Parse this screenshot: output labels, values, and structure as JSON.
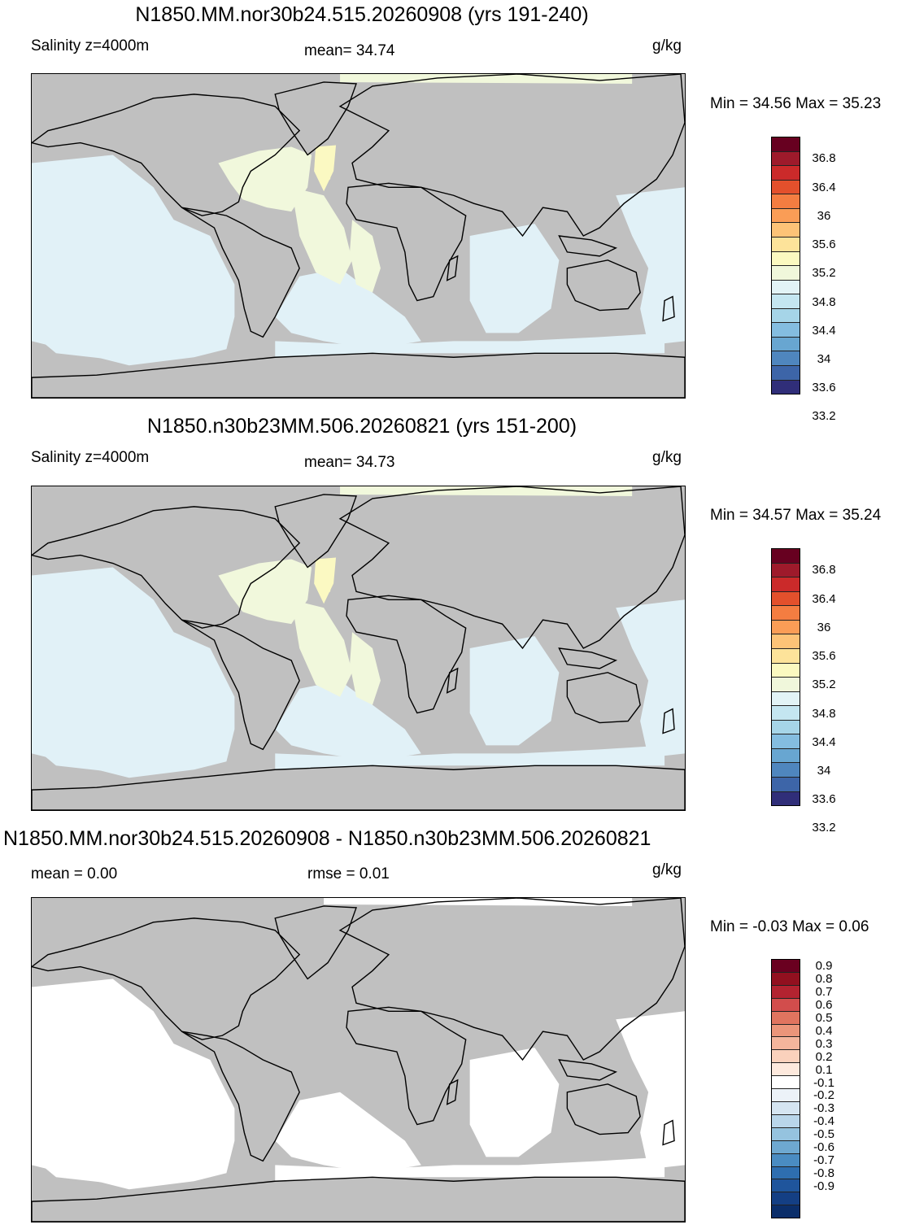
{
  "panels": [
    {
      "title": "N1850.MM.nor30b24.515.20260908 (yrs 191-240)",
      "left_label": "Salinity z=4000m",
      "center_label": "mean=  34.74",
      "units": "g/kg",
      "minmax": "Min =  34.56 Max =  35.23"
    },
    {
      "title": "N1850.n30b23MM.506.20260821 (yrs 151-200)",
      "left_label": "Salinity z=4000m",
      "center_label": "mean=  34.73",
      "units": "g/kg",
      "minmax": "Min =  34.57 Max =  35.24"
    },
    {
      "title": "N1850.MM.nor30b24.515.20260908 - N1850.n30b23MM.506.20260821",
      "left_label": "mean =   0.00",
      "center_label": "rmse =   0.01",
      "units": "g/kg",
      "minmax": "Min =  -0.03 Max =   0.06"
    }
  ],
  "colorbars": {
    "salinity": {
      "colors": [
        "#670020",
        "#9e1a2b",
        "#cb2a2a",
        "#e3502c",
        "#f47d41",
        "#fa9d56",
        "#fdc377",
        "#fde39a",
        "#fbf9c0",
        "#f0f7db",
        "#e2f3f6",
        "#c4e6f1",
        "#a6d5e8",
        "#84bde0",
        "#68a6d1",
        "#4f86be",
        "#3d65a8",
        "#302e79"
      ],
      "labels": [
        "36.8",
        "36.4",
        "36",
        "35.6",
        "35.2",
        "34.8",
        "34.4",
        "34",
        "33.6",
        "33.2"
      ]
    },
    "difference": {
      "colors": [
        "#6a0020",
        "#92101f",
        "#b32330",
        "#d24d4c",
        "#e0745f",
        "#eb957a",
        "#f4b59c",
        "#fad1bc",
        "#fde9dd",
        "#ffffff",
        "#ecf2f8",
        "#d5e5f1",
        "#b9d6ea",
        "#95c3df",
        "#6ea8d0",
        "#4a8cc2",
        "#2e6eb0",
        "#1f559c",
        "#143f84",
        "#0b2e6a"
      ],
      "labels": [
        "0.9",
        "0.8",
        "0.7",
        "0.6",
        "0.5",
        "0.4",
        "0.3",
        "0.2",
        "0.1",
        "-0.1",
        "-0.2",
        "-0.3",
        "-0.4",
        "-0.5",
        "-0.6",
        "-0.7",
        "-0.8",
        "-0.9"
      ]
    }
  },
  "map_colors": {
    "land": "#c0c0c0",
    "ocean_main": "#e1f1f7",
    "ocean_high": "#f1f8dc",
    "ocean_peak": "#fbf9c2",
    "ocean_diff": "#ffffff"
  }
}
